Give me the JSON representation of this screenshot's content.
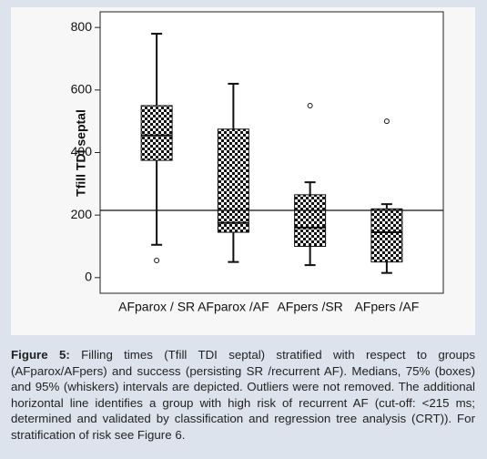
{
  "chart_data": {
    "type": "box",
    "ylabel": "Tfill TDI septal",
    "categories": [
      "AFparox / SR",
      "AFparox /AF",
      "AFpers /SR",
      "AFpers /AF"
    ],
    "boxes": [
      {
        "whisker_low": 105,
        "q1": 375,
        "median": 455,
        "q3": 550,
        "whisker_high": 780,
        "outliers": [
          55
        ]
      },
      {
        "whisker_low": 50,
        "q1": 145,
        "median": 175,
        "q3": 475,
        "whisker_high": 620,
        "outliers": []
      },
      {
        "whisker_low": 40,
        "q1": 100,
        "median": 160,
        "q3": 265,
        "whisker_high": 305,
        "outliers": [
          550
        ]
      },
      {
        "whisker_low": 15,
        "q1": 50,
        "median": 145,
        "q3": 220,
        "whisker_high": 235,
        "outliers": [
          500
        ]
      }
    ],
    "reference_line": 215,
    "ylim": [
      -50,
      850
    ],
    "yticks": [
      0,
      200,
      400,
      600,
      800
    ]
  },
  "caption": {
    "label": "Figure 5:",
    "text": "Filling times (Tfill TDI septal) stratified with respect to groups (AFparox/AFpers) and success (persisting SR /recurrent AF). Medians, 75% (boxes) and 95% (whiskers) intervals are depicted. Outliers were not removed. The additional horizontal line identifies a group with high risk of recurrent AF (cut-off: <215 ms; determined and validated by classification and regression tree analysis (CRT)). For stratification of risk see Figure 6."
  }
}
